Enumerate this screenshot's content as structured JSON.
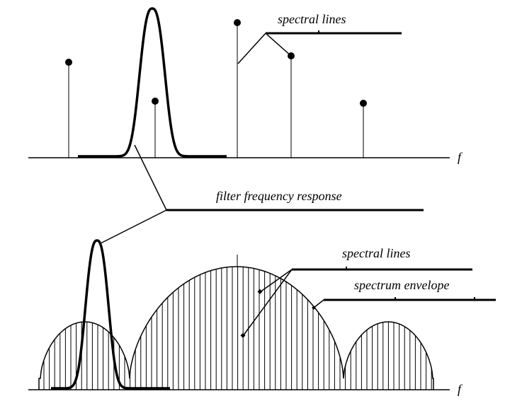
{
  "top": {
    "label": "spectral lines",
    "axis": "f"
  },
  "filter_label": "filter frequency response",
  "bottom": {
    "lines_label": "spectral lines",
    "envelope_label": "spectrum envelope",
    "axis": "f"
  }
}
